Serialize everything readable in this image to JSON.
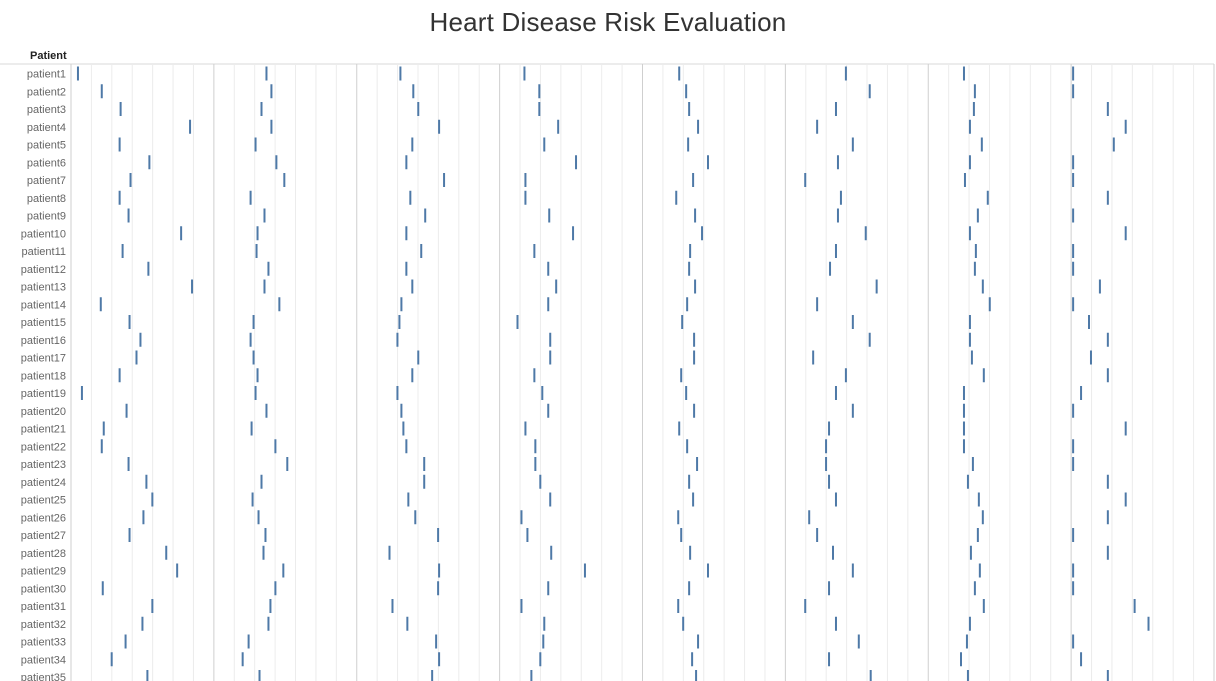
{
  "chart_data": {
    "type": "scatter",
    "title": "Heart Disease Risk Evaluation",
    "row_header": "Patient",
    "mark": "tick",
    "mark_color": "#4e79a7",
    "grid": true,
    "patients": [
      "patient1",
      "patient2",
      "patient3",
      "patient4",
      "patient5",
      "patient6",
      "patient7",
      "patient8",
      "patient9",
      "patient10",
      "patient11",
      "patient12",
      "patient13",
      "patient14",
      "patient15",
      "patient16",
      "patient17",
      "patient18",
      "patient19",
      "patient20",
      "patient21",
      "patient22",
      "patient23",
      "patient24",
      "patient25",
      "patient26",
      "patient27",
      "patient28",
      "patient29",
      "patient30",
      "patient31",
      "patient32",
      "patient33",
      "patient34",
      "patient35"
    ],
    "panes": [
      {
        "values": [
          0.5,
          2.9,
          4.8,
          11.8,
          4.7,
          7.7,
          5.8,
          4.7,
          5.6,
          10.9,
          5.0,
          7.6,
          12.0,
          2.8,
          5.7,
          6.8,
          6.4,
          4.7,
          0.9,
          5.4,
          3.1,
          2.9,
          5.6,
          7.4,
          8.0,
          7.1,
          5.7,
          9.4,
          10.5,
          3.0,
          8.0,
          7.0,
          5.3,
          3.9,
          7.5
        ]
      },
      {
        "values": [
          5.1,
          5.6,
          4.6,
          5.6,
          4.0,
          6.1,
          6.9,
          3.5,
          4.9,
          4.2,
          4.1,
          5.3,
          4.9,
          6.4,
          3.8,
          3.5,
          3.8,
          4.2,
          4.0,
          5.1,
          3.6,
          6.0,
          7.2,
          4.6,
          3.7,
          4.3,
          5.0,
          4.8,
          6.8,
          6.0,
          5.5,
          5.3,
          3.3,
          2.7,
          4.4
        ]
      },
      {
        "values": [
          4.2,
          5.5,
          6.0,
          8.1,
          5.4,
          4.8,
          8.6,
          5.2,
          6.7,
          4.8,
          6.3,
          4.8,
          5.4,
          4.3,
          4.1,
          3.9,
          6.0,
          5.4,
          3.9,
          4.3,
          4.5,
          4.8,
          6.6,
          6.6,
          5.0,
          5.7,
          8.0,
          3.1,
          8.1,
          8.0,
          3.4,
          4.9,
          7.8,
          8.1,
          7.4
        ]
      },
      {
        "values": [
          2.3,
          3.8,
          3.8,
          5.7,
          4.3,
          7.5,
          2.4,
          2.4,
          4.8,
          7.2,
          3.3,
          4.7,
          5.5,
          4.7,
          1.6,
          4.9,
          4.9,
          3.3,
          4.1,
          4.7,
          2.4,
          3.4,
          3.4,
          3.9,
          4.9,
          2.0,
          2.6,
          5.0,
          8.4,
          4.7,
          2.0,
          4.3,
          4.2,
          3.9,
          3.0
        ]
      },
      {
        "values": [
          3.5,
          4.2,
          4.5,
          5.4,
          4.4,
          6.4,
          4.9,
          3.2,
          5.1,
          5.8,
          4.6,
          4.5,
          5.1,
          4.3,
          3.8,
          5.0,
          5.0,
          3.7,
          4.2,
          5.0,
          3.5,
          4.3,
          5.3,
          4.5,
          4.9,
          3.4,
          3.7,
          4.6,
          6.4,
          4.5,
          3.4,
          3.9,
          5.4,
          4.8,
          5.2
        ]
      },
      {
        "values": [
          5.9,
          8.3,
          4.9,
          3.0,
          6.6,
          5.1,
          1.8,
          5.4,
          5.1,
          7.9,
          4.9,
          4.3,
          9.0,
          3.0,
          6.6,
          8.3,
          2.6,
          5.9,
          4.9,
          6.6,
          4.2,
          3.9,
          3.9,
          4.2,
          4.9,
          2.2,
          3.0,
          4.6,
          6.6,
          4.2,
          1.8,
          4.9,
          7.2,
          4.2,
          8.4
        ]
      },
      {
        "values": [
          3.4,
          4.5,
          4.4,
          4.0,
          5.2,
          4.0,
          3.5,
          5.8,
          4.8,
          4.0,
          4.6,
          4.5,
          5.3,
          6.0,
          4.0,
          4.0,
          4.2,
          5.4,
          3.4,
          3.4,
          3.4,
          3.4,
          4.3,
          3.8,
          4.9,
          5.3,
          4.8,
          4.1,
          5.0,
          4.5,
          5.4,
          4.0,
          3.7,
          3.1,
          3.8
        ]
      },
      {
        "values": [
          0.0,
          0.0,
          3.5,
          5.3,
          4.1,
          0.0,
          0.0,
          3.5,
          0.0,
          5.3,
          0.0,
          0.0,
          2.7,
          0.0,
          1.6,
          3.5,
          1.8,
          3.5,
          0.8,
          0.0,
          5.3,
          0.0,
          0.0,
          3.5,
          5.3,
          3.5,
          0.0,
          3.5,
          0.0,
          0.0,
          6.2,
          7.6,
          0.0,
          0.8,
          3.5
        ]
      }
    ]
  }
}
